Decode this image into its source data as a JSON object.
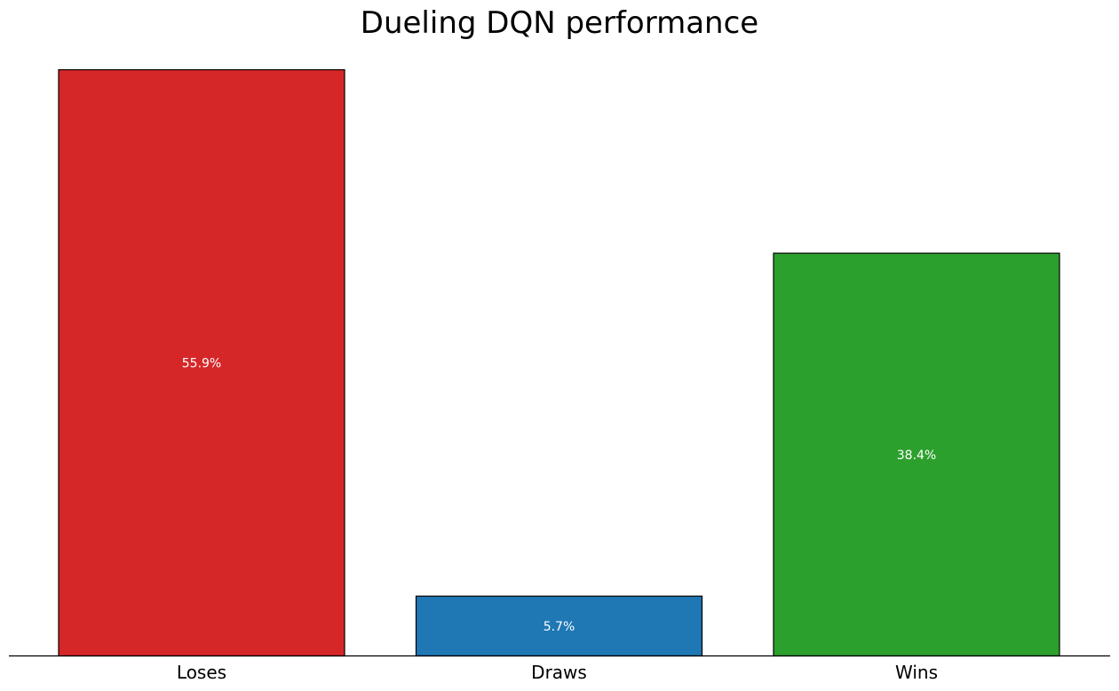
{
  "chart_data": {
    "type": "bar",
    "title": "Dueling DQN performance",
    "xlabel": "",
    "ylabel": "",
    "categories": [
      "Loses",
      "Draws",
      "Wins"
    ],
    "values": [
      55.9,
      5.7,
      38.4
    ],
    "value_labels": [
      "55.9%",
      "5.7%",
      "38.4%"
    ],
    "colors": [
      "#d62728",
      "#1f77b4",
      "#2ca02c"
    ],
    "edge_color": "#000000",
    "ylim": [
      0,
      55.9
    ],
    "grid": false,
    "legend": "none",
    "y_axis_visible": false
  }
}
